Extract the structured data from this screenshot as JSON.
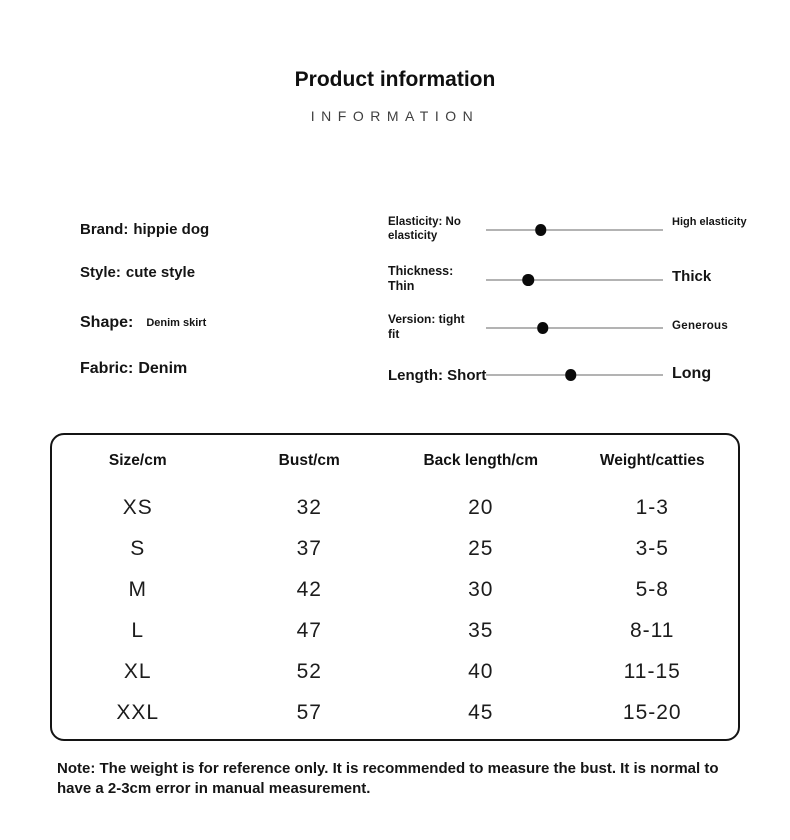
{
  "header": {
    "title": "Product information",
    "subtitle": "INFORMATION"
  },
  "specs": [
    {
      "label": "Brand:",
      "value": "hippie dog"
    },
    {
      "label": "Style:",
      "value": "cute style"
    },
    {
      "label": "Shape:",
      "value": "Denim skirt"
    },
    {
      "label": "Fabric:",
      "value": "Denim"
    }
  ],
  "sliders": [
    {
      "name": "elasticity",
      "left_label": "Elasticity: No elasticity",
      "right_label": "High elasticity",
      "position_pct": 31
    },
    {
      "name": "thickness",
      "left_label": "Thickness: Thin",
      "right_label": "Thick",
      "position_pct": 24
    },
    {
      "name": "version",
      "left_label": "Version: tight fit",
      "right_label": "Generous",
      "position_pct": 32
    },
    {
      "name": "length",
      "left_label": "Length: Short",
      "right_label": "Long",
      "position_pct": 48
    }
  ],
  "table": {
    "headers": [
      "Size/cm",
      "Bust/cm",
      "Back length/cm",
      "Weight/catties"
    ],
    "rows": [
      [
        "XS",
        "32",
        "20",
        "1-3"
      ],
      [
        "S",
        "37",
        "25",
        "3-5"
      ],
      [
        "M",
        "42",
        "30",
        "5-8"
      ],
      [
        "L",
        "47",
        "35",
        "8-11"
      ],
      [
        "XL",
        "52",
        "40",
        "11-15"
      ],
      [
        "XXL",
        "57",
        "45",
        "15-20"
      ]
    ]
  },
  "note": "Note: The weight is for reference only. It is recommended to measure the bust. It is normal to have a 2-3cm error in manual measurement.",
  "colors": {
    "text": "#141414",
    "subtitle": "#3f3f3f",
    "slider_track": "#b3b3b3",
    "slider_dot": "#0a0a0a",
    "table_border": "#141414",
    "background": "#ffffff"
  }
}
